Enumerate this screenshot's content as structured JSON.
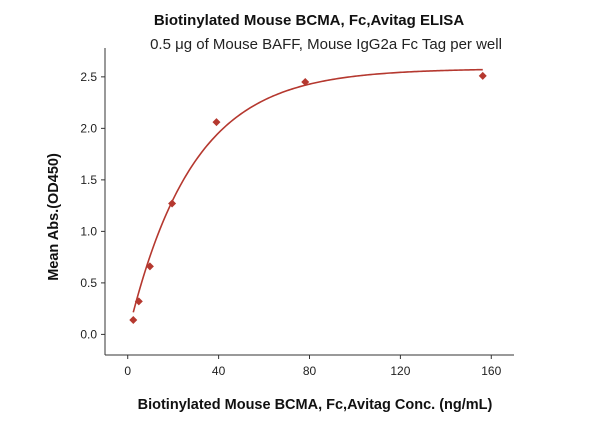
{
  "colors": {
    "series": "#b5382f",
    "axis": "#333333"
  },
  "chart_data": {
    "type": "scatter",
    "title": "Biotinylated Mouse BCMA, Fc,Avitag ELISA",
    "subtitle": "0.5 μg of Mouse BAFF, Mouse IgG2a Fc Tag per well",
    "xlabel": "Biotinylated Mouse BCMA, Fc,Avitag Conc. (ng/mL)",
    "ylabel": "Mean Abs.(OD450)",
    "xlim": [
      -10,
      170
    ],
    "ylim": [
      -0.2,
      2.78
    ],
    "xticks": [
      0,
      40,
      80,
      120,
      160
    ],
    "xtick_labels": [
      "0",
      "40",
      "80",
      "120",
      "160"
    ],
    "yticks": [
      0.0,
      0.5,
      1.0,
      1.5,
      2.0,
      2.5
    ],
    "ytick_labels": [
      "0.0",
      "0.5",
      "1.0",
      "1.5",
      "2.0",
      "2.5"
    ],
    "grid": false,
    "legend": false,
    "series": [
      {
        "marker": "diamond",
        "x": [
          2.44,
          4.88,
          9.77,
          19.53,
          39.06,
          78.13,
          156.25
        ],
        "y": [
          0.14,
          0.32,
          0.66,
          1.27,
          2.06,
          2.45,
          2.51
        ],
        "fit_curve": true
      }
    ]
  }
}
